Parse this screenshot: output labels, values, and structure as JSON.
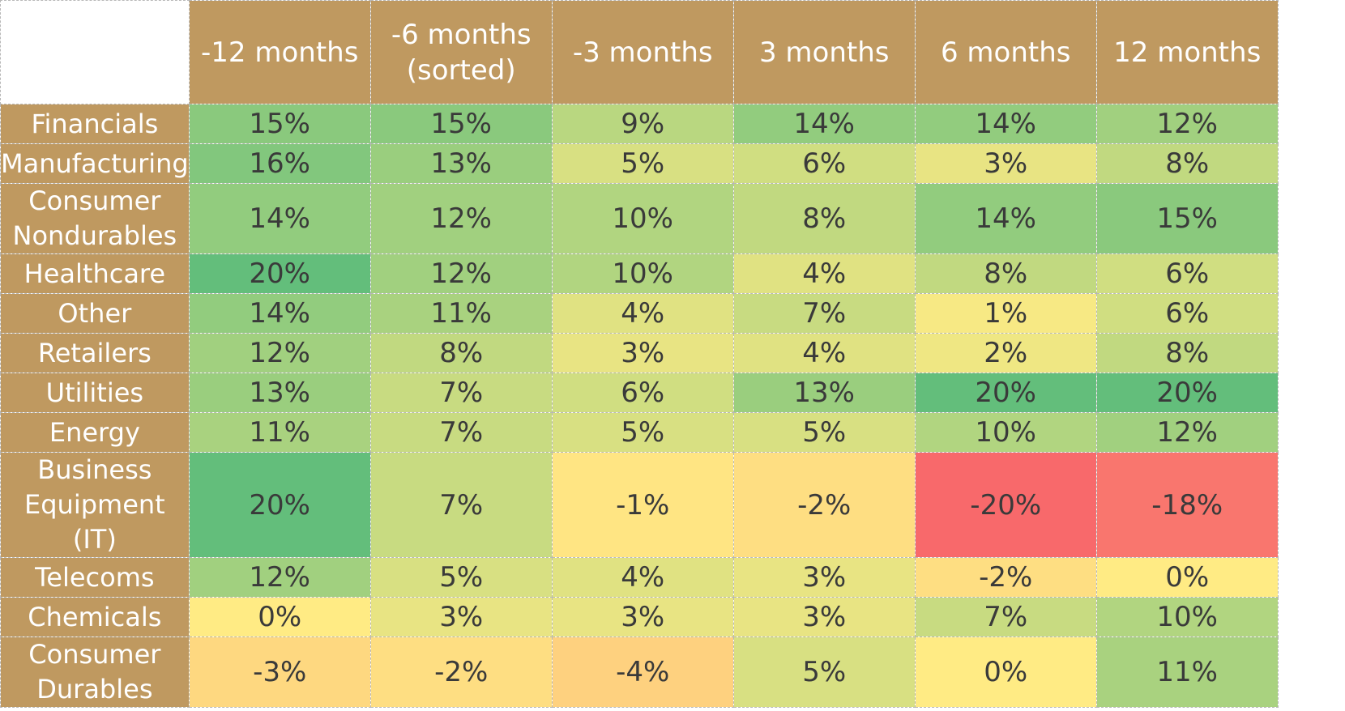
{
  "chart_data": {
    "type": "heatmap",
    "columns": [
      "-12 months",
      "-6 months (sorted)",
      "-3 months",
      "3 months",
      "6 months",
      "12 months"
    ],
    "rows": [
      {
        "label": "Financials",
        "values": [
          15,
          15,
          9,
          14,
          14,
          12
        ]
      },
      {
        "label": "Manufacturing",
        "values": [
          16,
          13,
          5,
          6,
          3,
          8
        ]
      },
      {
        "label": "Consumer Nondurables",
        "values": [
          14,
          12,
          10,
          8,
          14,
          15
        ]
      },
      {
        "label": "Healthcare",
        "values": [
          20,
          12,
          10,
          4,
          8,
          6
        ]
      },
      {
        "label": "Other",
        "values": [
          14,
          11,
          4,
          7,
          1,
          6
        ]
      },
      {
        "label": "Retailers",
        "values": [
          12,
          8,
          3,
          4,
          2,
          8
        ]
      },
      {
        "label": "Utilities",
        "values": [
          13,
          7,
          6,
          13,
          20,
          20
        ]
      },
      {
        "label": "Energy",
        "values": [
          11,
          7,
          5,
          5,
          10,
          12
        ]
      },
      {
        "label": "Business Equipment (IT)",
        "values": [
          20,
          7,
          -1,
          -2,
          -20,
          -18
        ]
      },
      {
        "label": "Telecoms",
        "values": [
          12,
          5,
          4,
          3,
          -2,
          0
        ]
      },
      {
        "label": "Chemicals",
        "values": [
          0,
          3,
          3,
          3,
          7,
          10
        ]
      },
      {
        "label": "Consumer Durables",
        "values": [
          -3,
          -2,
          -4,
          5,
          0,
          11
        ]
      }
    ],
    "value_format": "percent",
    "color_scale": {
      "min": -20,
      "max": 20,
      "colors": [
        "#f8696b",
        "#ffeb84",
        "#63be7b"
      ]
    },
    "header_color": "#bf9960"
  }
}
